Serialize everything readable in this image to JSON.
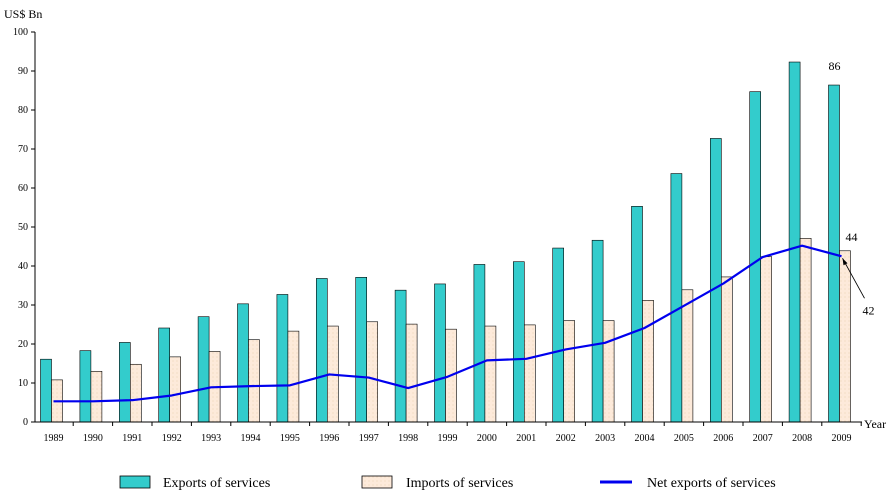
{
  "chart_data": {
    "type": "bar",
    "ylabel": "US$ Bn",
    "xlabel": "Year",
    "ylim": [
      0,
      100
    ],
    "yticks": [
      0,
      10,
      20,
      30,
      40,
      50,
      60,
      70,
      80,
      90,
      100
    ],
    "categories": [
      "1989",
      "1990",
      "1991",
      "1992",
      "1993",
      "1994",
      "1995",
      "1996",
      "1997",
      "1998",
      "1999",
      "2000",
      "2001",
      "2002",
      "2003",
      "2004",
      "2005",
      "2006",
      "2007",
      "2008",
      "2009"
    ],
    "series": [
      {
        "name": "Exports of services",
        "kind": "bar",
        "color": "#33cccc",
        "values": [
          16.1,
          18.3,
          20.4,
          24.1,
          27.0,
          30.3,
          32.7,
          36.8,
          37.1,
          33.8,
          35.4,
          40.4,
          41.1,
          44.6,
          46.6,
          55.3,
          63.7,
          72.7,
          84.7,
          92.3,
          86.4
        ]
      },
      {
        "name": "Imports of services",
        "kind": "bar",
        "color": "#fdeada",
        "values": [
          10.8,
          13.0,
          14.8,
          16.7,
          18.1,
          21.1,
          23.3,
          24.6,
          25.7,
          25.1,
          23.8,
          24.6,
          24.9,
          26.0,
          26.0,
          31.2,
          33.9,
          37.2,
          42.4,
          47.1,
          43.9
        ]
      },
      {
        "name": "Net exports of services",
        "kind": "line",
        "color": "#0000ee",
        "values": [
          5.3,
          5.3,
          5.6,
          6.8,
          8.9,
          9.2,
          9.4,
          12.2,
          11.4,
          8.7,
          11.6,
          15.8,
          16.2,
          18.6,
          20.3,
          24.1,
          29.8,
          35.5,
          42.3,
          45.2,
          42.5
        ]
      }
    ],
    "annotations": [
      {
        "text": "86",
        "target": "exports-2009"
      },
      {
        "text": "44",
        "target": "imports-2009"
      },
      {
        "text": "42",
        "target": "net-2009"
      }
    ],
    "legend": {
      "placement": "bottom"
    },
    "grid": false
  }
}
